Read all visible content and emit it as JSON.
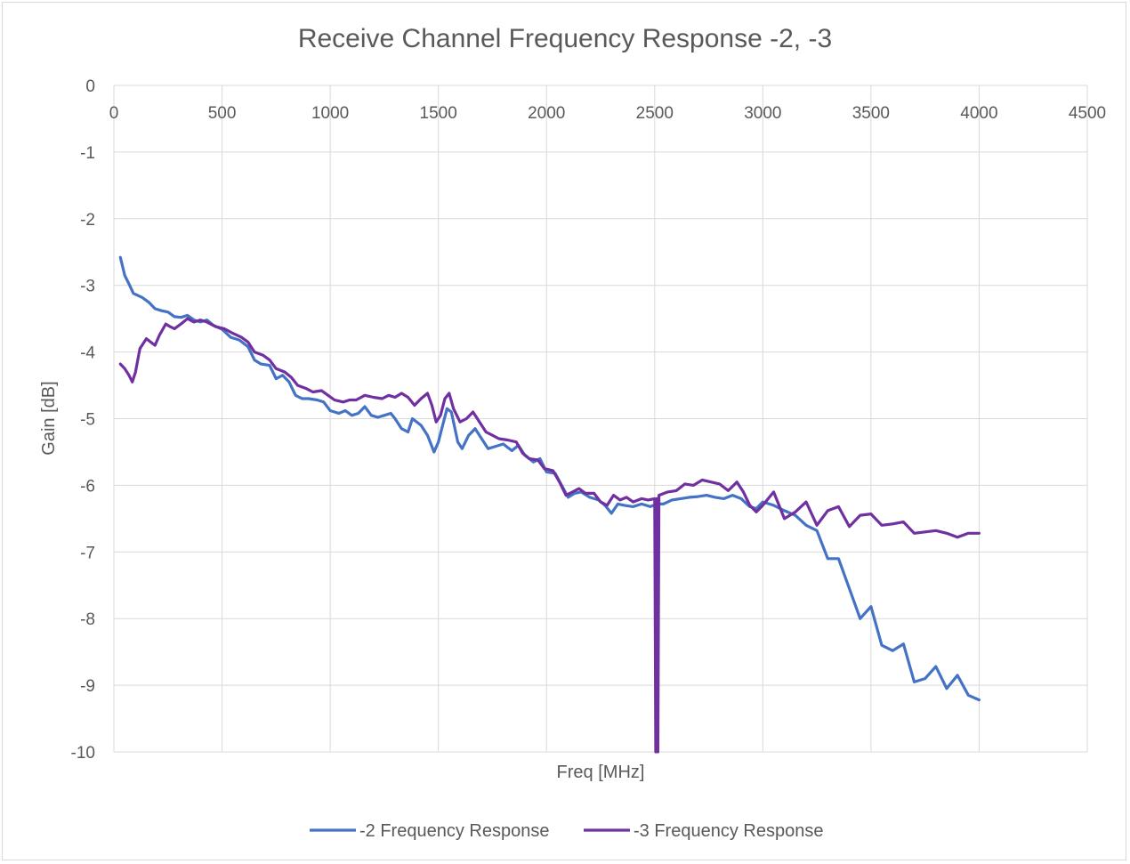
{
  "chart_data": {
    "type": "line",
    "title": "Receive Channel Frequency Response -2, -3",
    "xlabel": "Freq [MHz]",
    "ylabel": "Gain [dB]",
    "xlim": [
      0,
      4500
    ],
    "ylim": [
      -10,
      0
    ],
    "x_ticks": [
      0,
      500,
      1000,
      1500,
      2000,
      2500,
      3000,
      3500,
      4000,
      4500
    ],
    "y_ticks": [
      0,
      -1,
      -2,
      -3,
      -4,
      -5,
      -6,
      -7,
      -8,
      -9,
      -10
    ],
    "x_tick_labels": [
      "0",
      "500",
      "1000",
      "1500",
      "2000",
      "2500",
      "3000",
      "3500",
      "4000",
      "4500"
    ],
    "y_tick_labels": [
      "0",
      "-1",
      "-2",
      "-3",
      "-4",
      "-5",
      "-6",
      "-7",
      "-8",
      "-9",
      "-10"
    ],
    "grid": true,
    "x_axis_position": "top",
    "legend_position": "bottom",
    "series": [
      {
        "name": "-2 Frequency Response",
        "color": "#4472c4",
        "points": [
          [
            30,
            -2.58
          ],
          [
            50,
            -2.85
          ],
          [
            70,
            -2.98
          ],
          [
            90,
            -3.12
          ],
          [
            110,
            -3.15
          ],
          [
            130,
            -3.18
          ],
          [
            160,
            -3.25
          ],
          [
            190,
            -3.35
          ],
          [
            220,
            -3.38
          ],
          [
            250,
            -3.4
          ],
          [
            280,
            -3.47
          ],
          [
            310,
            -3.48
          ],
          [
            340,
            -3.45
          ],
          [
            370,
            -3.52
          ],
          [
            400,
            -3.55
          ],
          [
            430,
            -3.52
          ],
          [
            460,
            -3.6
          ],
          [
            500,
            -3.66
          ],
          [
            540,
            -3.78
          ],
          [
            580,
            -3.82
          ],
          [
            620,
            -3.92
          ],
          [
            650,
            -4.12
          ],
          [
            680,
            -4.18
          ],
          [
            720,
            -4.2
          ],
          [
            750,
            -4.4
          ],
          [
            780,
            -4.35
          ],
          [
            810,
            -4.45
          ],
          [
            840,
            -4.65
          ],
          [
            870,
            -4.7
          ],
          [
            900,
            -4.7
          ],
          [
            940,
            -4.72
          ],
          [
            970,
            -4.75
          ],
          [
            1000,
            -4.88
          ],
          [
            1040,
            -4.92
          ],
          [
            1070,
            -4.88
          ],
          [
            1100,
            -4.95
          ],
          [
            1130,
            -4.92
          ],
          [
            1160,
            -4.82
          ],
          [
            1190,
            -4.95
          ],
          [
            1220,
            -4.98
          ],
          [
            1250,
            -4.95
          ],
          [
            1280,
            -4.92
          ],
          [
            1300,
            -5.0
          ],
          [
            1330,
            -5.15
          ],
          [
            1360,
            -5.2
          ],
          [
            1380,
            -5.0
          ],
          [
            1420,
            -5.1
          ],
          [
            1450,
            -5.25
          ],
          [
            1480,
            -5.5
          ],
          [
            1500,
            -5.35
          ],
          [
            1520,
            -5.1
          ],
          [
            1540,
            -4.85
          ],
          [
            1560,
            -4.9
          ],
          [
            1590,
            -5.35
          ],
          [
            1610,
            -5.45
          ],
          [
            1640,
            -5.25
          ],
          [
            1670,
            -5.15
          ],
          [
            1700,
            -5.3
          ],
          [
            1730,
            -5.45
          ],
          [
            1760,
            -5.42
          ],
          [
            1800,
            -5.38
          ],
          [
            1840,
            -5.48
          ],
          [
            1870,
            -5.4
          ],
          [
            1900,
            -5.55
          ],
          [
            1940,
            -5.65
          ],
          [
            1970,
            -5.6
          ],
          [
            2000,
            -5.8
          ],
          [
            2040,
            -5.82
          ],
          [
            2070,
            -6.0
          ],
          [
            2100,
            -6.18
          ],
          [
            2130,
            -6.12
          ],
          [
            2160,
            -6.1
          ],
          [
            2200,
            -6.18
          ],
          [
            2240,
            -6.22
          ],
          [
            2270,
            -6.3
          ],
          [
            2300,
            -6.42
          ],
          [
            2330,
            -6.28
          ],
          [
            2360,
            -6.3
          ],
          [
            2400,
            -6.32
          ],
          [
            2440,
            -6.28
          ],
          [
            2480,
            -6.32
          ],
          [
            2510,
            -6.28
          ],
          [
            2540,
            -6.28
          ],
          [
            2580,
            -6.22
          ],
          [
            2620,
            -6.2
          ],
          [
            2660,
            -6.18
          ],
          [
            2700,
            -6.17
          ],
          [
            2740,
            -6.15
          ],
          [
            2780,
            -6.18
          ],
          [
            2820,
            -6.2
          ],
          [
            2860,
            -6.15
          ],
          [
            2900,
            -6.2
          ],
          [
            2940,
            -6.32
          ],
          [
            2970,
            -6.35
          ],
          [
            3000,
            -6.25
          ],
          [
            3050,
            -6.3
          ],
          [
            3100,
            -6.38
          ],
          [
            3150,
            -6.45
          ],
          [
            3200,
            -6.6
          ],
          [
            3250,
            -6.68
          ],
          [
            3300,
            -7.1
          ],
          [
            3350,
            -7.1
          ],
          [
            3400,
            -7.55
          ],
          [
            3450,
            -8.0
          ],
          [
            3500,
            -7.82
          ],
          [
            3550,
            -8.4
          ],
          [
            3600,
            -8.48
          ],
          [
            3650,
            -8.38
          ],
          [
            3700,
            -8.95
          ],
          [
            3750,
            -8.9
          ],
          [
            3800,
            -8.72
          ],
          [
            3850,
            -9.05
          ],
          [
            3900,
            -8.85
          ],
          [
            3950,
            -9.15
          ],
          [
            4000,
            -9.22
          ]
        ]
      },
      {
        "name": "-3 Frequency Response",
        "color": "#7030a0",
        "points": [
          [
            30,
            -4.18
          ],
          [
            50,
            -4.25
          ],
          [
            70,
            -4.35
          ],
          [
            85,
            -4.45
          ],
          [
            100,
            -4.3
          ],
          [
            120,
            -3.95
          ],
          [
            150,
            -3.8
          ],
          [
            170,
            -3.85
          ],
          [
            190,
            -3.9
          ],
          [
            210,
            -3.75
          ],
          [
            240,
            -3.58
          ],
          [
            260,
            -3.62
          ],
          [
            280,
            -3.65
          ],
          [
            310,
            -3.58
          ],
          [
            340,
            -3.5
          ],
          [
            370,
            -3.55
          ],
          [
            400,
            -3.52
          ],
          [
            430,
            -3.55
          ],
          [
            470,
            -3.62
          ],
          [
            510,
            -3.65
          ],
          [
            550,
            -3.72
          ],
          [
            590,
            -3.78
          ],
          [
            620,
            -3.85
          ],
          [
            650,
            -4.0
          ],
          [
            690,
            -4.05
          ],
          [
            720,
            -4.12
          ],
          [
            750,
            -4.25
          ],
          [
            790,
            -4.3
          ],
          [
            820,
            -4.38
          ],
          [
            850,
            -4.5
          ],
          [
            890,
            -4.55
          ],
          [
            920,
            -4.6
          ],
          [
            960,
            -4.58
          ],
          [
            990,
            -4.65
          ],
          [
            1020,
            -4.72
          ],
          [
            1060,
            -4.75
          ],
          [
            1090,
            -4.72
          ],
          [
            1120,
            -4.72
          ],
          [
            1160,
            -4.65
          ],
          [
            1200,
            -4.68
          ],
          [
            1240,
            -4.7
          ],
          [
            1270,
            -4.65
          ],
          [
            1300,
            -4.68
          ],
          [
            1330,
            -4.62
          ],
          [
            1360,
            -4.68
          ],
          [
            1390,
            -4.8
          ],
          [
            1420,
            -4.7
          ],
          [
            1450,
            -4.62
          ],
          [
            1470,
            -4.8
          ],
          [
            1490,
            -5.05
          ],
          [
            1510,
            -4.95
          ],
          [
            1530,
            -4.7
          ],
          [
            1550,
            -4.62
          ],
          [
            1570,
            -4.85
          ],
          [
            1600,
            -5.05
          ],
          [
            1630,
            -5.0
          ],
          [
            1660,
            -4.9
          ],
          [
            1690,
            -5.05
          ],
          [
            1720,
            -5.2
          ],
          [
            1750,
            -5.25
          ],
          [
            1780,
            -5.3
          ],
          [
            1820,
            -5.32
          ],
          [
            1860,
            -5.35
          ],
          [
            1890,
            -5.52
          ],
          [
            1920,
            -5.6
          ],
          [
            1960,
            -5.62
          ],
          [
            1990,
            -5.75
          ],
          [
            2030,
            -5.78
          ],
          [
            2060,
            -5.95
          ],
          [
            2090,
            -6.15
          ],
          [
            2120,
            -6.1
          ],
          [
            2150,
            -6.05
          ],
          [
            2180,
            -6.12
          ],
          [
            2220,
            -6.12
          ],
          [
            2250,
            -6.25
          ],
          [
            2280,
            -6.3
          ],
          [
            2310,
            -6.15
          ],
          [
            2340,
            -6.22
          ],
          [
            2370,
            -6.18
          ],
          [
            2400,
            -6.25
          ],
          [
            2440,
            -6.2
          ],
          [
            2470,
            -6.22
          ],
          [
            2500,
            -6.2
          ],
          [
            2505,
            -10.0
          ],
          [
            2510,
            -6.2
          ],
          [
            2515,
            -10.0
          ],
          [
            2520,
            -6.15
          ],
          [
            2560,
            -6.1
          ],
          [
            2600,
            -6.08
          ],
          [
            2640,
            -5.98
          ],
          [
            2680,
            -6.0
          ],
          [
            2720,
            -5.92
          ],
          [
            2760,
            -5.95
          ],
          [
            2800,
            -5.98
          ],
          [
            2840,
            -6.08
          ],
          [
            2880,
            -5.95
          ],
          [
            2910,
            -6.1
          ],
          [
            2940,
            -6.3
          ],
          [
            2970,
            -6.4
          ],
          [
            3000,
            -6.3
          ],
          [
            3050,
            -6.1
          ],
          [
            3100,
            -6.5
          ],
          [
            3150,
            -6.4
          ],
          [
            3200,
            -6.25
          ],
          [
            3250,
            -6.6
          ],
          [
            3300,
            -6.38
          ],
          [
            3350,
            -6.32
          ],
          [
            3400,
            -6.62
          ],
          [
            3450,
            -6.45
          ],
          [
            3500,
            -6.43
          ],
          [
            3550,
            -6.6
          ],
          [
            3600,
            -6.58
          ],
          [
            3650,
            -6.55
          ],
          [
            3700,
            -6.72
          ],
          [
            3750,
            -6.7
          ],
          [
            3800,
            -6.68
          ],
          [
            3850,
            -6.72
          ],
          [
            3900,
            -6.78
          ],
          [
            3950,
            -6.72
          ],
          [
            4000,
            -6.72
          ]
        ]
      }
    ]
  }
}
